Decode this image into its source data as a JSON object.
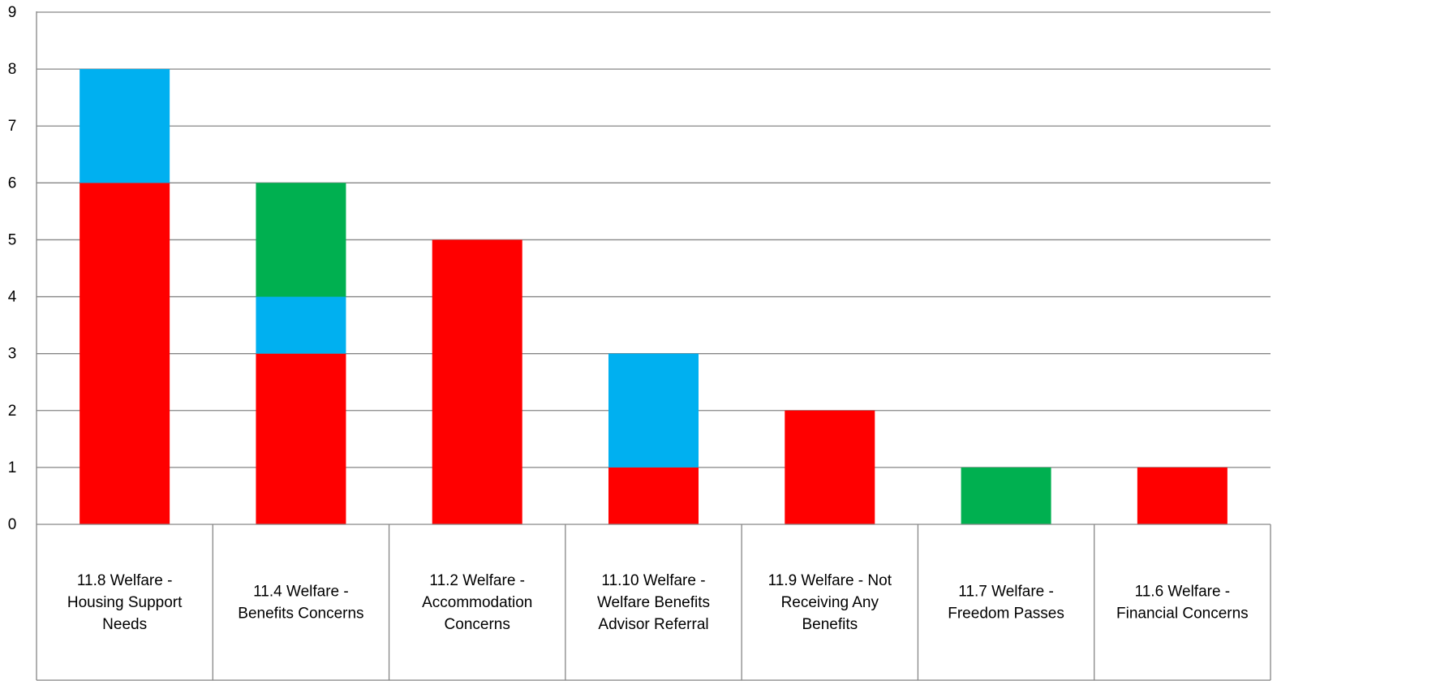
{
  "colors": {
    "red": "#ff0000",
    "blue": "#00b0f0",
    "green": "#00b050",
    "gridline": "#868686",
    "axis": "#868686",
    "text": "#000000"
  },
  "chart_data": {
    "type": "bar",
    "stacked": true,
    "title": "",
    "xlabel": "",
    "ylabel": "",
    "ylim": [
      0,
      9
    ],
    "yticks": [
      "0",
      "1",
      "2",
      "3",
      "4",
      "5",
      "6",
      "7",
      "8",
      "9"
    ],
    "grid": true,
    "legend": "none",
    "categories": [
      [
        "11.8 Welfare -",
        "Housing Support",
        "Needs"
      ],
      [
        "11.4 Welfare -",
        "Benefits Concerns"
      ],
      [
        "11.2 Welfare -",
        "Accommodation",
        "Concerns"
      ],
      [
        "11.10 Welfare -",
        "Welfare Benefits",
        "Advisor Referral"
      ],
      [
        "11.9 Welfare - Not",
        "Receiving Any",
        "Benefits"
      ],
      [
        "11.7 Welfare -",
        "Freedom Passes"
      ],
      [
        "11.6 Welfare -",
        "Financial Concerns"
      ]
    ],
    "series": [
      {
        "color": "red",
        "values": [
          6,
          3,
          5,
          1,
          2,
          0,
          1
        ]
      },
      {
        "color": "blue",
        "values": [
          2,
          1,
          0,
          2,
          0,
          0,
          0
        ]
      },
      {
        "color": "green",
        "values": [
          0,
          2,
          0,
          0,
          0,
          1,
          0
        ]
      }
    ]
  }
}
